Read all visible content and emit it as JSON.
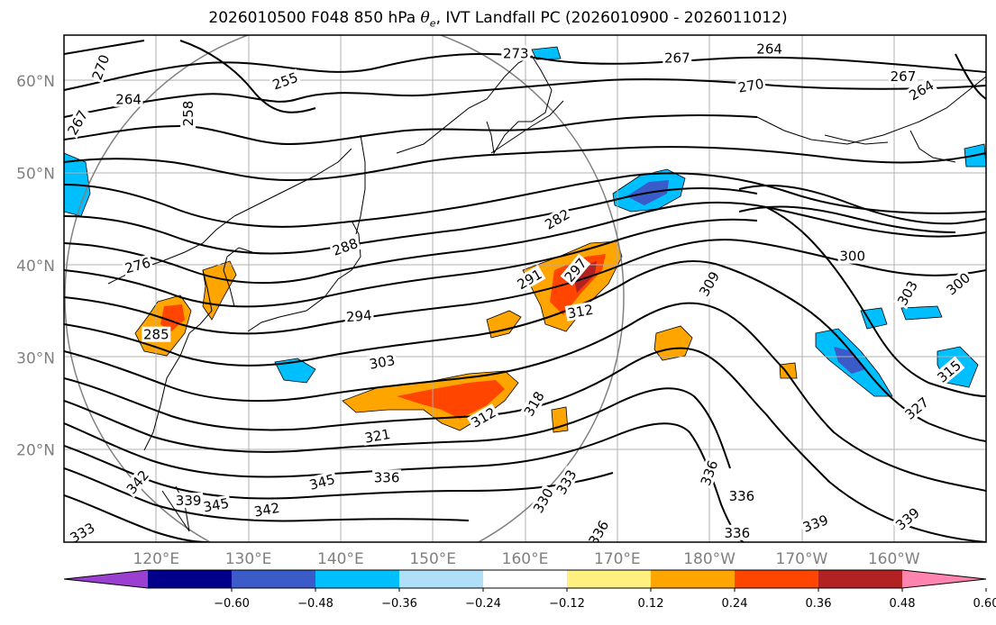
{
  "title": {
    "prefix": "2026010500 F048 850 hPa ",
    "symbol": "θ",
    "subscript": "e",
    "suffix": ", IVT Landfall PC (2026010900 - 2026011012)"
  },
  "map": {
    "extent": {
      "lon_min": 110,
      "lon_max": 210,
      "lat_min": 10,
      "lat_max": 65
    },
    "lat_labels": [
      {
        "lat": 60,
        "text": "60°N"
      },
      {
        "lat": 50,
        "text": "50°N"
      },
      {
        "lat": 40,
        "text": "40°N"
      },
      {
        "lat": 30,
        "text": "30°N"
      },
      {
        "lat": 20,
        "text": "20°N"
      }
    ],
    "lon_labels": [
      {
        "lon": 120,
        "text": "120°E"
      },
      {
        "lon": 130,
        "text": "130°E"
      },
      {
        "lon": 140,
        "text": "140°E"
      },
      {
        "lon": 150,
        "text": "150°E"
      },
      {
        "lon": 160,
        "text": "160°E"
      },
      {
        "lon": 170,
        "text": "170°E"
      },
      {
        "lon": 180,
        "text": "180°W"
      },
      {
        "lon": 190,
        "text": "170°W"
      },
      {
        "lon": 200,
        "text": "160°W"
      }
    ],
    "contour_labels": [
      {
        "text": "270",
        "lon": 114.0,
        "lat": 61.5,
        "rot": -70
      },
      {
        "text": "264",
        "lon": 117.0,
        "lat": 58.0,
        "rot": 0
      },
      {
        "text": "267",
        "lon": 111.5,
        "lat": 55.5,
        "rot": -60
      },
      {
        "text": "258",
        "lon": 123.5,
        "lat": 56.5,
        "rot": -90
      },
      {
        "text": "255",
        "lon": 134.0,
        "lat": 60.0,
        "rot": -20
      },
      {
        "text": "273",
        "lon": 159.0,
        "lat": 63.0,
        "rot": 0
      },
      {
        "text": "267",
        "lon": 176.5,
        "lat": 62.5,
        "rot": 0
      },
      {
        "text": "264",
        "lon": 186.5,
        "lat": 63.5,
        "rot": 0
      },
      {
        "text": "270",
        "lon": 184.5,
        "lat": 59.5,
        "rot": -10
      },
      {
        "text": "276",
        "lon": 118.0,
        "lat": 40.0,
        "rot": -15
      },
      {
        "text": "285",
        "lon": 120.0,
        "lat": 32.5,
        "rot": 0
      },
      {
        "text": "288",
        "lon": 140.5,
        "lat": 42.0,
        "rot": -20
      },
      {
        "text": "282",
        "lon": 163.5,
        "lat": 45.0,
        "rot": -30
      },
      {
        "text": "291",
        "lon": 160.5,
        "lat": 38.5,
        "rot": -30
      },
      {
        "text": "297",
        "lon": 165.5,
        "lat": 39.5,
        "rot": -50
      },
      {
        "text": "294",
        "lon": 142.0,
        "lat": 34.5,
        "rot": -5
      },
      {
        "text": "312",
        "lon": 166.0,
        "lat": 35.0,
        "rot": -10
      },
      {
        "text": "309",
        "lon": 180.0,
        "lat": 38.0,
        "rot": -60
      },
      {
        "text": "300",
        "lon": 195.5,
        "lat": 41.0,
        "rot": 0
      },
      {
        "text": "303",
        "lon": 201.5,
        "lat": 37.0,
        "rot": -60
      },
      {
        "text": "300",
        "lon": 207.0,
        "lat": 38.0,
        "rot": -40
      },
      {
        "text": "303",
        "lon": 144.5,
        "lat": 29.5,
        "rot": -10
      },
      {
        "text": "315",
        "lon": 206.0,
        "lat": 28.5,
        "rot": -40
      },
      {
        "text": "318",
        "lon": 161.0,
        "lat": 25.0,
        "rot": -60
      },
      {
        "text": "312",
        "lon": 155.5,
        "lat": 23.5,
        "rot": -30
      },
      {
        "text": "327",
        "lon": 202.5,
        "lat": 24.5,
        "rot": -40
      },
      {
        "text": "321",
        "lon": 144.0,
        "lat": 21.5,
        "rot": -10
      },
      {
        "text": "330",
        "lon": 162.0,
        "lat": 14.5,
        "rot": -60
      },
      {
        "text": "333",
        "lon": 164.5,
        "lat": 16.5,
        "rot": -60
      },
      {
        "text": "336",
        "lon": 180.0,
        "lat": 17.5,
        "rot": -70
      },
      {
        "text": "336",
        "lon": 145.0,
        "lat": 17.0,
        "rot": 0
      },
      {
        "text": "345",
        "lon": 138.0,
        "lat": 16.5,
        "rot": -15
      },
      {
        "text": "342",
        "lon": 132.0,
        "lat": 13.5,
        "rot": -10
      },
      {
        "text": "339",
        "lon": 123.5,
        "lat": 14.5,
        "rot": 0
      },
      {
        "text": "345",
        "lon": 126.5,
        "lat": 14.0,
        "rot": -10
      },
      {
        "text": "342",
        "lon": 118.0,
        "lat": 16.5,
        "rot": -50
      },
      {
        "text": "336",
        "lon": 183.5,
        "lat": 15.0,
        "rot": 0
      },
      {
        "text": "339",
        "lon": 191.5,
        "lat": 12.0,
        "rot": -20
      },
      {
        "text": "336",
        "lon": 168.0,
        "lat": 11.0,
        "rot": -60
      },
      {
        "text": "336",
        "lon": 183.0,
        "lat": 11.0,
        "rot": 0
      },
      {
        "text": "339",
        "lon": 201.5,
        "lat": 12.5,
        "rot": -40
      },
      {
        "text": "333",
        "lon": 112.0,
        "lat": 11.0,
        "rot": -30
      },
      {
        "text": "267",
        "lon": 201.0,
        "lat": 60.5,
        "rot": 0
      },
      {
        "text": "264",
        "lon": 203.0,
        "lat": 59.0,
        "rot": -30
      }
    ]
  },
  "colorbar": {
    "colors": [
      "#9a3fd0",
      "#00008b",
      "#3a5bc8",
      "#00bfff",
      "#b0e0f8",
      "#ffffff",
      "#fff080",
      "#ffa500",
      "#ff4500",
      "#b22222",
      "#ff85b0"
    ],
    "tick_labels": [
      "−0.60",
      "−0.48",
      "−0.36",
      "−0.24",
      "−0.12",
      "0.12",
      "0.24",
      "0.36",
      "0.48",
      "0.60"
    ]
  }
}
